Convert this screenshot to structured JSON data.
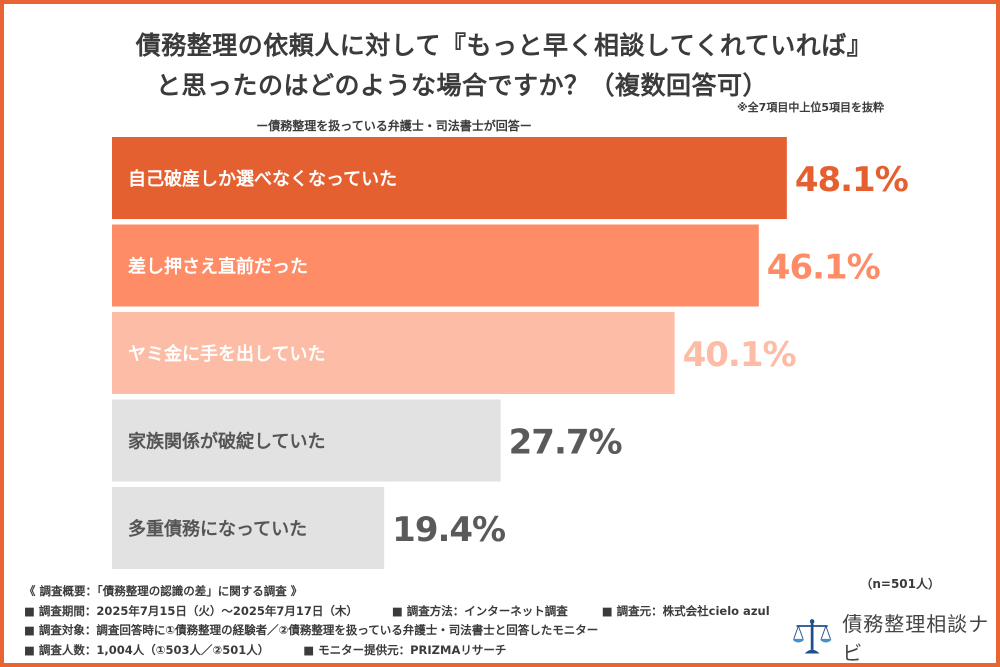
{
  "header": {
    "title_line1": "債務整理の依頼人に対して『もっと早く相談してくれていれば』",
    "title_line2": "と思ったのはどのような場合ですか？（複数回答可）",
    "note": "※全7項目中上位5項目を抜粋",
    "subtitle": "ー債務整理を扱っている弁護士・司法書士が回答ー"
  },
  "chart_data": {
    "type": "bar",
    "orientation": "horizontal",
    "title": "債務整理の依頼人に対して『もっと早く相談してくれていれば』と思ったのはどのような場合ですか？（複数回答可）",
    "subtitle": "ー債務整理を扱っている弁護士・司法書士が回答ー",
    "categories": [
      "自己破産しか選べなくなっていた",
      "差し押さえ直前だった",
      "ヤミ金に手を出していた",
      "家族関係が破綻していた",
      "多重債務になっていた"
    ],
    "values": [
      48.1,
      46.1,
      40.1,
      27.7,
      19.4
    ],
    "value_labels": [
      "48.1%",
      "46.1%",
      "40.1%",
      "27.7%",
      "19.4%"
    ],
    "bar_colors": [
      "#e56030",
      "#fe8c66",
      "#fdbca5",
      "#e2e2e2",
      "#e2e2e2"
    ],
    "label_text_colors": [
      "#ffffff",
      "#ffffff",
      "#ffffff",
      "#555555",
      "#555555"
    ],
    "value_text_colors": [
      "#e56030",
      "#fe8c66",
      "#fdbca5",
      "#5a5a5a",
      "#5a5a5a"
    ],
    "xlabel": "",
    "ylabel": "",
    "xlim": [
      0,
      100
    ],
    "unit": "%",
    "grid": false,
    "legend": "none"
  },
  "sample_size": "（n=501人）",
  "footer": {
    "heading": "《 調査概要：「債務整理の認識の差」に関する調査 》",
    "period": "■ 調査期間：2025年7月15日（火）～2025年7月17日（木）",
    "method": "■ 調査方法：インターネット調査",
    "source": "■ 調査元：株式会社cielo azul",
    "target": "■ 調査対象：調査回答時に①債務整理の経験者／②債務整理を扱っている弁護士・司法書士と回答したモニター",
    "count": "■ 調査人数：1,004人（①503人／②501人）",
    "provider": "■ モニター提供元：PRIZMAリサーチ"
  },
  "logo": {
    "icon": "scales-of-justice-icon",
    "text": "債務整理相談ナビ",
    "color": "#1f4e8c"
  },
  "frame_color": "#e86433"
}
